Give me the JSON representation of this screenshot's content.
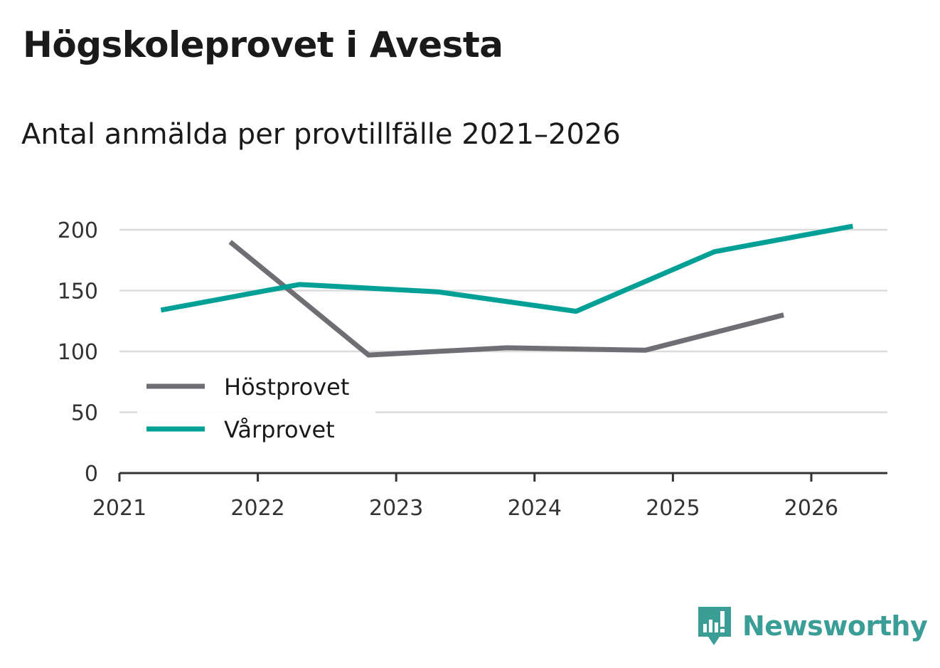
{
  "header": {
    "title": "Högskoleprovet i Avesta",
    "subtitle": "Antal anmälda per provtillfälle 2021–2026"
  },
  "brand": {
    "name": "Newsworthy",
    "color": "#3a9d96",
    "icon": "newsworthy-logo-icon"
  },
  "chart_data": {
    "type": "line",
    "title": "Högskoleprovet i Avesta",
    "subtitle": "Antal anmälda per provtillfälle 2021–2026",
    "xlabel": "",
    "ylabel": "",
    "xlim": [
      2021,
      2026.55
    ],
    "ylim": [
      0,
      200
    ],
    "x_ticks": [
      "2021",
      "2022",
      "2023",
      "2024",
      "2025",
      "2026"
    ],
    "y_ticks": [
      "0",
      "50",
      "100",
      "150",
      "200"
    ],
    "grid": true,
    "legend": "left",
    "series": [
      {
        "name": "Höstprovet",
        "color": "#6e6e75",
        "points": [
          {
            "x": 2021.8,
            "y": 190
          },
          {
            "x": 2022.8,
            "y": 97
          },
          {
            "x": 2023.8,
            "y": 103
          },
          {
            "x": 2024.8,
            "y": 101
          },
          {
            "x": 2025.8,
            "y": 130
          }
        ]
      },
      {
        "name": "Vårprovet",
        "color": "#00a096",
        "points": [
          {
            "x": 2021.3,
            "y": 134
          },
          {
            "x": 2022.3,
            "y": 155
          },
          {
            "x": 2023.3,
            "y": 149
          },
          {
            "x": 2024.3,
            "y": 133
          },
          {
            "x": 2025.3,
            "y": 182
          },
          {
            "x": 2026.3,
            "y": 203
          }
        ]
      }
    ]
  }
}
